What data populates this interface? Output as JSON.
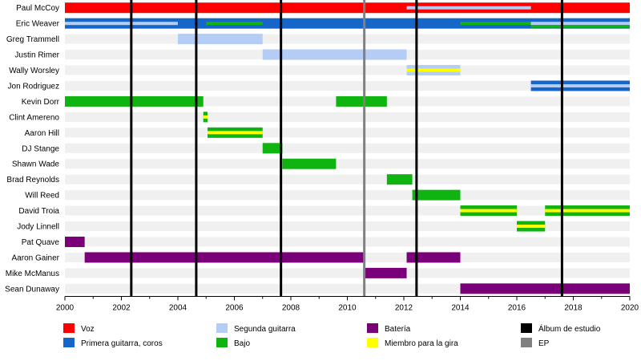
{
  "chart_data": {
    "type": "timeline",
    "x_axis": {
      "range": [
        2000,
        2020
      ],
      "ticks": [
        2000,
        2002,
        2004,
        2006,
        2008,
        2010,
        2012,
        2014,
        2016,
        2018,
        2020
      ]
    },
    "grid": true,
    "legend_position": "bottom",
    "roles": [
      {
        "id": "voz",
        "label": "Voz",
        "color": "#ff0000"
      },
      {
        "id": "primera",
        "label": "Primera guitarra, coros",
        "color": "#1566c8"
      },
      {
        "id": "segunda",
        "label": "Segunda guitarra",
        "color": "#b5ccf5"
      },
      {
        "id": "bajo",
        "label": "Bajo",
        "color": "#10b410"
      },
      {
        "id": "bateria",
        "label": "Batería",
        "color": "#7a007a"
      },
      {
        "id": "gira",
        "label": "Miembro para la gira",
        "color": "#ffff00"
      }
    ],
    "release_markers": [
      {
        "id": "album",
        "label": "Álbum de estudio",
        "color": "#000000",
        "dates": [
          2002.35,
          2004.65,
          2007.65,
          2012.45,
          2017.6
        ]
      },
      {
        "id": "ep",
        "label": "EP",
        "color": "#808080",
        "dates": [
          2010.6
        ]
      }
    ],
    "legend_layout": [
      [
        "voz",
        "primera"
      ],
      [
        "segunda",
        "bajo"
      ],
      [
        "bateria",
        "gira"
      ],
      [
        "album",
        "ep"
      ]
    ],
    "members": [
      {
        "name": "Paul McCoy",
        "periods": [
          {
            "role": "voz",
            "start": 2000,
            "end": 2020
          },
          {
            "role": "segunda",
            "start": 2012.1,
            "end": 2016.5,
            "style": "stripe"
          }
        ]
      },
      {
        "name": "Eric Weaver",
        "periods": [
          {
            "role": "primera",
            "start": 2000,
            "end": 2020
          },
          {
            "role": "segunda",
            "start": 2000,
            "end": 2004,
            "style": "stripe"
          },
          {
            "role": "bajo",
            "start": 2005,
            "end": 2007,
            "style": "stripe"
          },
          {
            "role": "bajo",
            "start": 2014,
            "end": 2016.5,
            "style": "stripe"
          },
          {
            "role": "segunda",
            "start": 2016.5,
            "end": 2020,
            "style": "stripe"
          },
          {
            "role": "bajo",
            "start": 2016.5,
            "end": 2020,
            "style": "stripe-low"
          }
        ]
      },
      {
        "name": "Greg Trammell",
        "periods": [
          {
            "role": "segunda",
            "start": 2004,
            "end": 2007
          }
        ]
      },
      {
        "name": "Justin Rimer",
        "periods": [
          {
            "role": "segunda",
            "start": 2007,
            "end": 2012.1
          }
        ]
      },
      {
        "name": "Wally Worsley",
        "periods": [
          {
            "role": "segunda",
            "start": 2012.1,
            "end": 2014
          },
          {
            "role": "gira",
            "start": 2012.1,
            "end": 2014,
            "style": "stripe"
          }
        ]
      },
      {
        "name": "Jon Rodriguez",
        "periods": [
          {
            "role": "primera",
            "start": 2016.5,
            "end": 2020
          },
          {
            "role": "segunda",
            "start": 2016.5,
            "end": 2020,
            "style": "stripe"
          }
        ]
      },
      {
        "name": "Kevin Dorr",
        "periods": [
          {
            "role": "bajo",
            "start": 2000,
            "end": 2004.9
          },
          {
            "role": "bajo",
            "start": 2009.6,
            "end": 2011.4
          }
        ]
      },
      {
        "name": "Clint Amereno",
        "periods": [
          {
            "role": "bajo",
            "start": 2004.9,
            "end": 2005.05
          },
          {
            "role": "gira",
            "start": 2004.9,
            "end": 2005.05,
            "style": "stripe"
          }
        ]
      },
      {
        "name": "Aaron Hill",
        "periods": [
          {
            "role": "bajo",
            "start": 2005.05,
            "end": 2007
          },
          {
            "role": "gira",
            "start": 2005.05,
            "end": 2007,
            "style": "stripe"
          }
        ]
      },
      {
        "name": "DJ Stange",
        "periods": [
          {
            "role": "bajo",
            "start": 2007,
            "end": 2007.7
          }
        ]
      },
      {
        "name": "Shawn Wade",
        "periods": [
          {
            "role": "bajo",
            "start": 2007.7,
            "end": 2009.6
          }
        ]
      },
      {
        "name": "Brad Reynolds",
        "periods": [
          {
            "role": "bajo",
            "start": 2011.4,
            "end": 2012.3
          }
        ]
      },
      {
        "name": "Will Reed",
        "periods": [
          {
            "role": "bajo",
            "start": 2012.3,
            "end": 2014
          }
        ]
      },
      {
        "name": "David Troia",
        "periods": [
          {
            "role": "bajo",
            "start": 2014,
            "end": 2016
          },
          {
            "role": "gira",
            "start": 2014,
            "end": 2016,
            "style": "stripe"
          },
          {
            "role": "bajo",
            "start": 2017,
            "end": 2020
          },
          {
            "role": "gira",
            "start": 2017,
            "end": 2020,
            "style": "stripe"
          }
        ]
      },
      {
        "name": "Jody Linnell",
        "periods": [
          {
            "role": "bajo",
            "start": 2016,
            "end": 2017
          },
          {
            "role": "gira",
            "start": 2016,
            "end": 2017,
            "style": "stripe"
          }
        ]
      },
      {
        "name": "Pat Quave",
        "periods": [
          {
            "role": "bateria",
            "start": 2000,
            "end": 2000.7
          }
        ]
      },
      {
        "name": "Aaron Gainer",
        "periods": [
          {
            "role": "bateria",
            "start": 2000.7,
            "end": 2010.6
          },
          {
            "role": "bateria",
            "start": 2012.1,
            "end": 2014
          }
        ]
      },
      {
        "name": "Mike McManus",
        "periods": [
          {
            "role": "bateria",
            "start": 2010.6,
            "end": 2012.1
          }
        ]
      },
      {
        "name": "Sean Dunaway",
        "periods": [
          {
            "role": "bateria",
            "start": 2014,
            "end": 2020
          }
        ]
      }
    ]
  }
}
